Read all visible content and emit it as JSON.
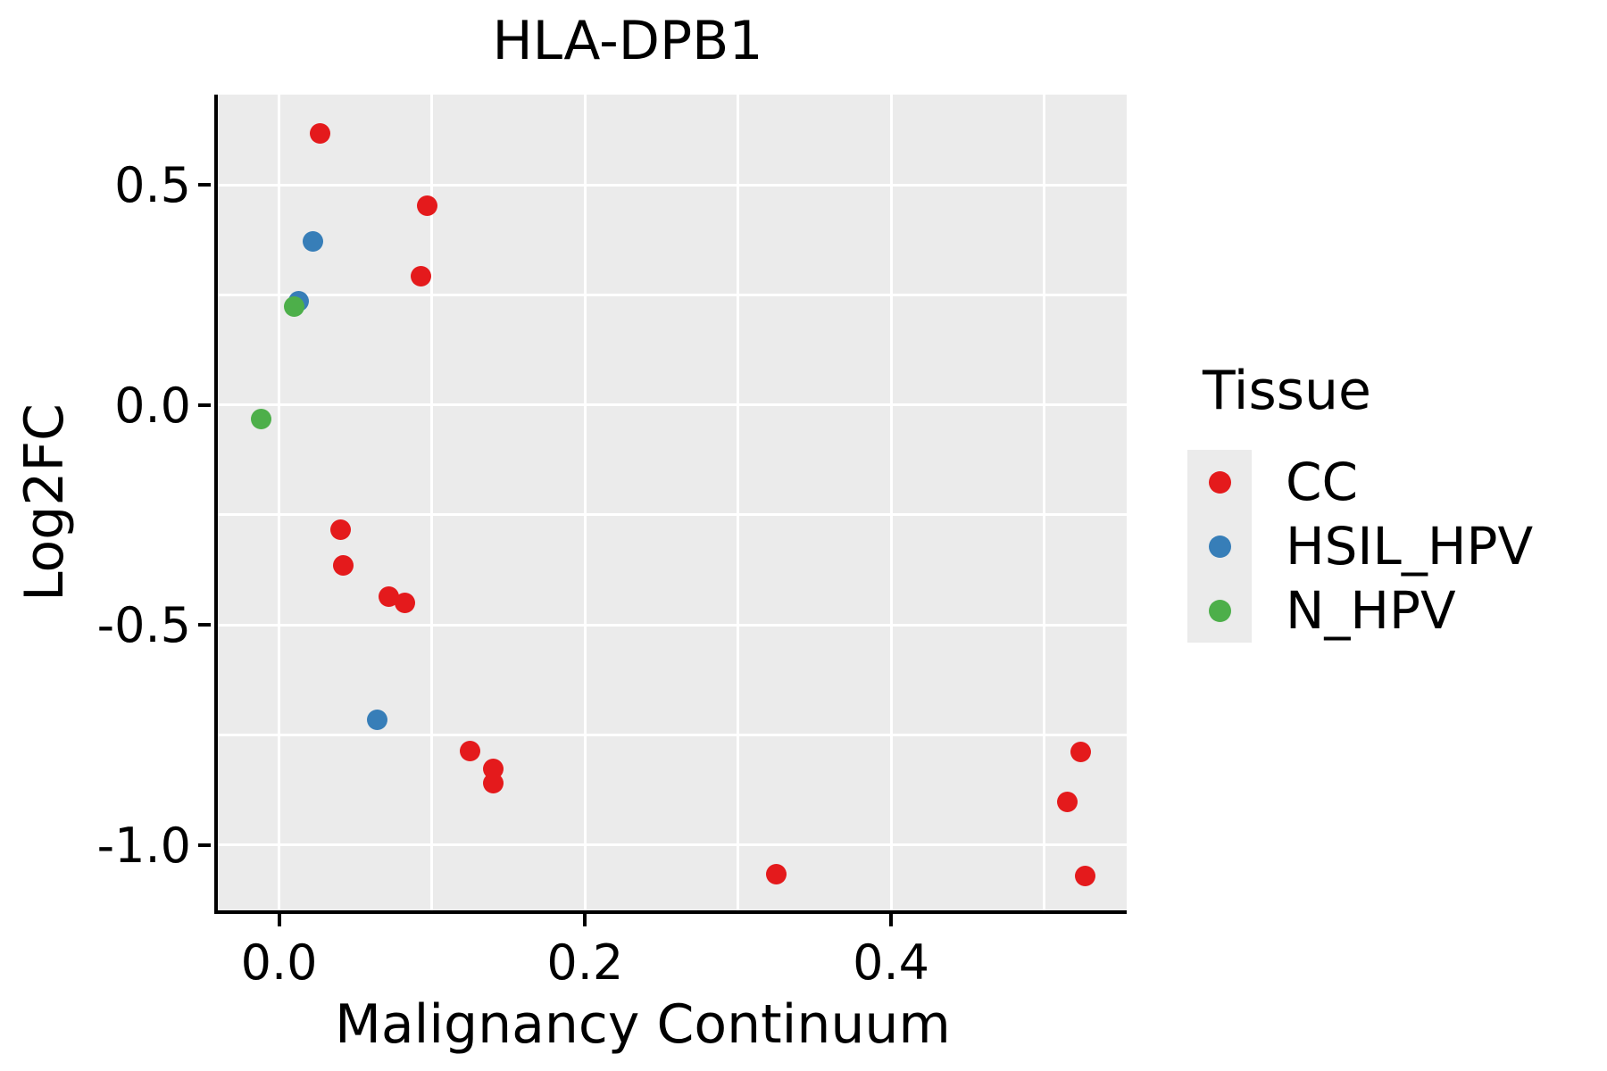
{
  "chart_data": {
    "type": "scatter",
    "title": "HLA-DPB1",
    "xlabel": "Malignancy Continuum",
    "ylabel": "Log2FC",
    "xlim": [
      -0.04,
      0.554
    ],
    "ylim": [
      -1.149,
      0.705
    ],
    "x_ticks": {
      "values": [
        0.0,
        0.2,
        0.4
      ],
      "labels": [
        "0.0",
        "0.2",
        "0.4"
      ]
    },
    "x_minor_ticks": [
      0.1,
      0.3,
      0.5
    ],
    "y_ticks": {
      "values": [
        0.5,
        0.0,
        -0.5,
        -1.0
      ],
      "labels": [
        "0.5",
        "0.0",
        "-0.5",
        "-1.0"
      ]
    },
    "y_minor_ticks": [
      0.25,
      -0.25,
      -0.75
    ],
    "grid": true,
    "panel_background": "#EBEBEB",
    "gridline_color": "#FFFFFF",
    "axis_color": "#000000",
    "legend": {
      "title": "Tissue",
      "position": "right"
    },
    "series": [
      {
        "name": "CC",
        "color": "#E41A1C",
        "points": [
          [
            0.027,
            0.617
          ],
          [
            0.097,
            0.453
          ],
          [
            0.093,
            0.293
          ],
          [
            0.04,
            -0.283
          ],
          [
            0.042,
            -0.364
          ],
          [
            0.072,
            -0.435
          ],
          [
            0.082,
            -0.451
          ],
          [
            0.125,
            -0.786
          ],
          [
            0.14,
            -0.828
          ],
          [
            0.14,
            -0.859
          ],
          [
            0.325,
            -1.066
          ],
          [
            0.524,
            -0.788
          ],
          [
            0.515,
            -0.902
          ],
          [
            0.527,
            -1.07
          ]
        ]
      },
      {
        "name": "HSIL_HPV",
        "color": "#377EB8",
        "points": [
          [
            0.022,
            0.372
          ],
          [
            0.013,
            0.236
          ],
          [
            0.064,
            -0.715
          ]
        ]
      },
      {
        "name": "N_HPV",
        "color": "#4DAF4A",
        "points": [
          [
            0.01,
            0.224
          ],
          [
            -0.012,
            -0.033
          ]
        ]
      }
    ]
  }
}
